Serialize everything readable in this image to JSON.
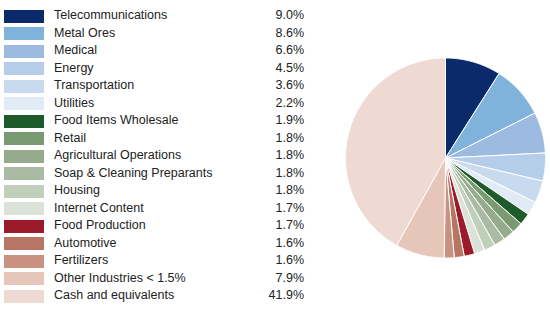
{
  "chart_data": {
    "type": "pie",
    "categories": [
      "Telecommunications",
      "Metal Ores",
      "Medical",
      "Energy",
      "Transportation",
      "Utilities",
      "Food Items Wholesale",
      "Retail",
      "Agricultural Operations",
      "Soap & Cleaning Preparants",
      "Housing",
      "Internet Content",
      "Food Production",
      "Automotive",
      "Fertilizers",
      "Other Industries < 1.5%",
      "Cash and equivalents"
    ],
    "values": [
      9.0,
      8.6,
      6.6,
      4.5,
      3.6,
      2.2,
      1.9,
      1.8,
      1.8,
      1.8,
      1.8,
      1.7,
      1.7,
      1.6,
      1.6,
      7.9,
      41.9
    ],
    "value_labels": [
      "9.0%",
      "8.6%",
      "6.6%",
      "4.5%",
      "3.6%",
      "2.2%",
      "1.9%",
      "1.8%",
      "1.8%",
      "1.8%",
      "1.8%",
      "1.7%",
      "1.7%",
      "1.6%",
      "1.6%",
      "7.9%",
      "41.9%"
    ],
    "colors": [
      "#0b2a6b",
      "#7fb3dc",
      "#9dbbe0",
      "#b5cde8",
      "#c8daee",
      "#e1ebf5",
      "#1e5b2a",
      "#7a9a72",
      "#95ab8c",
      "#a9bba2",
      "#c0cfba",
      "#dbe3d8",
      "#9b1b2a",
      "#b77563",
      "#c9917f",
      "#e6c6b8",
      "#eedad3"
    ],
    "legend": "left"
  }
}
